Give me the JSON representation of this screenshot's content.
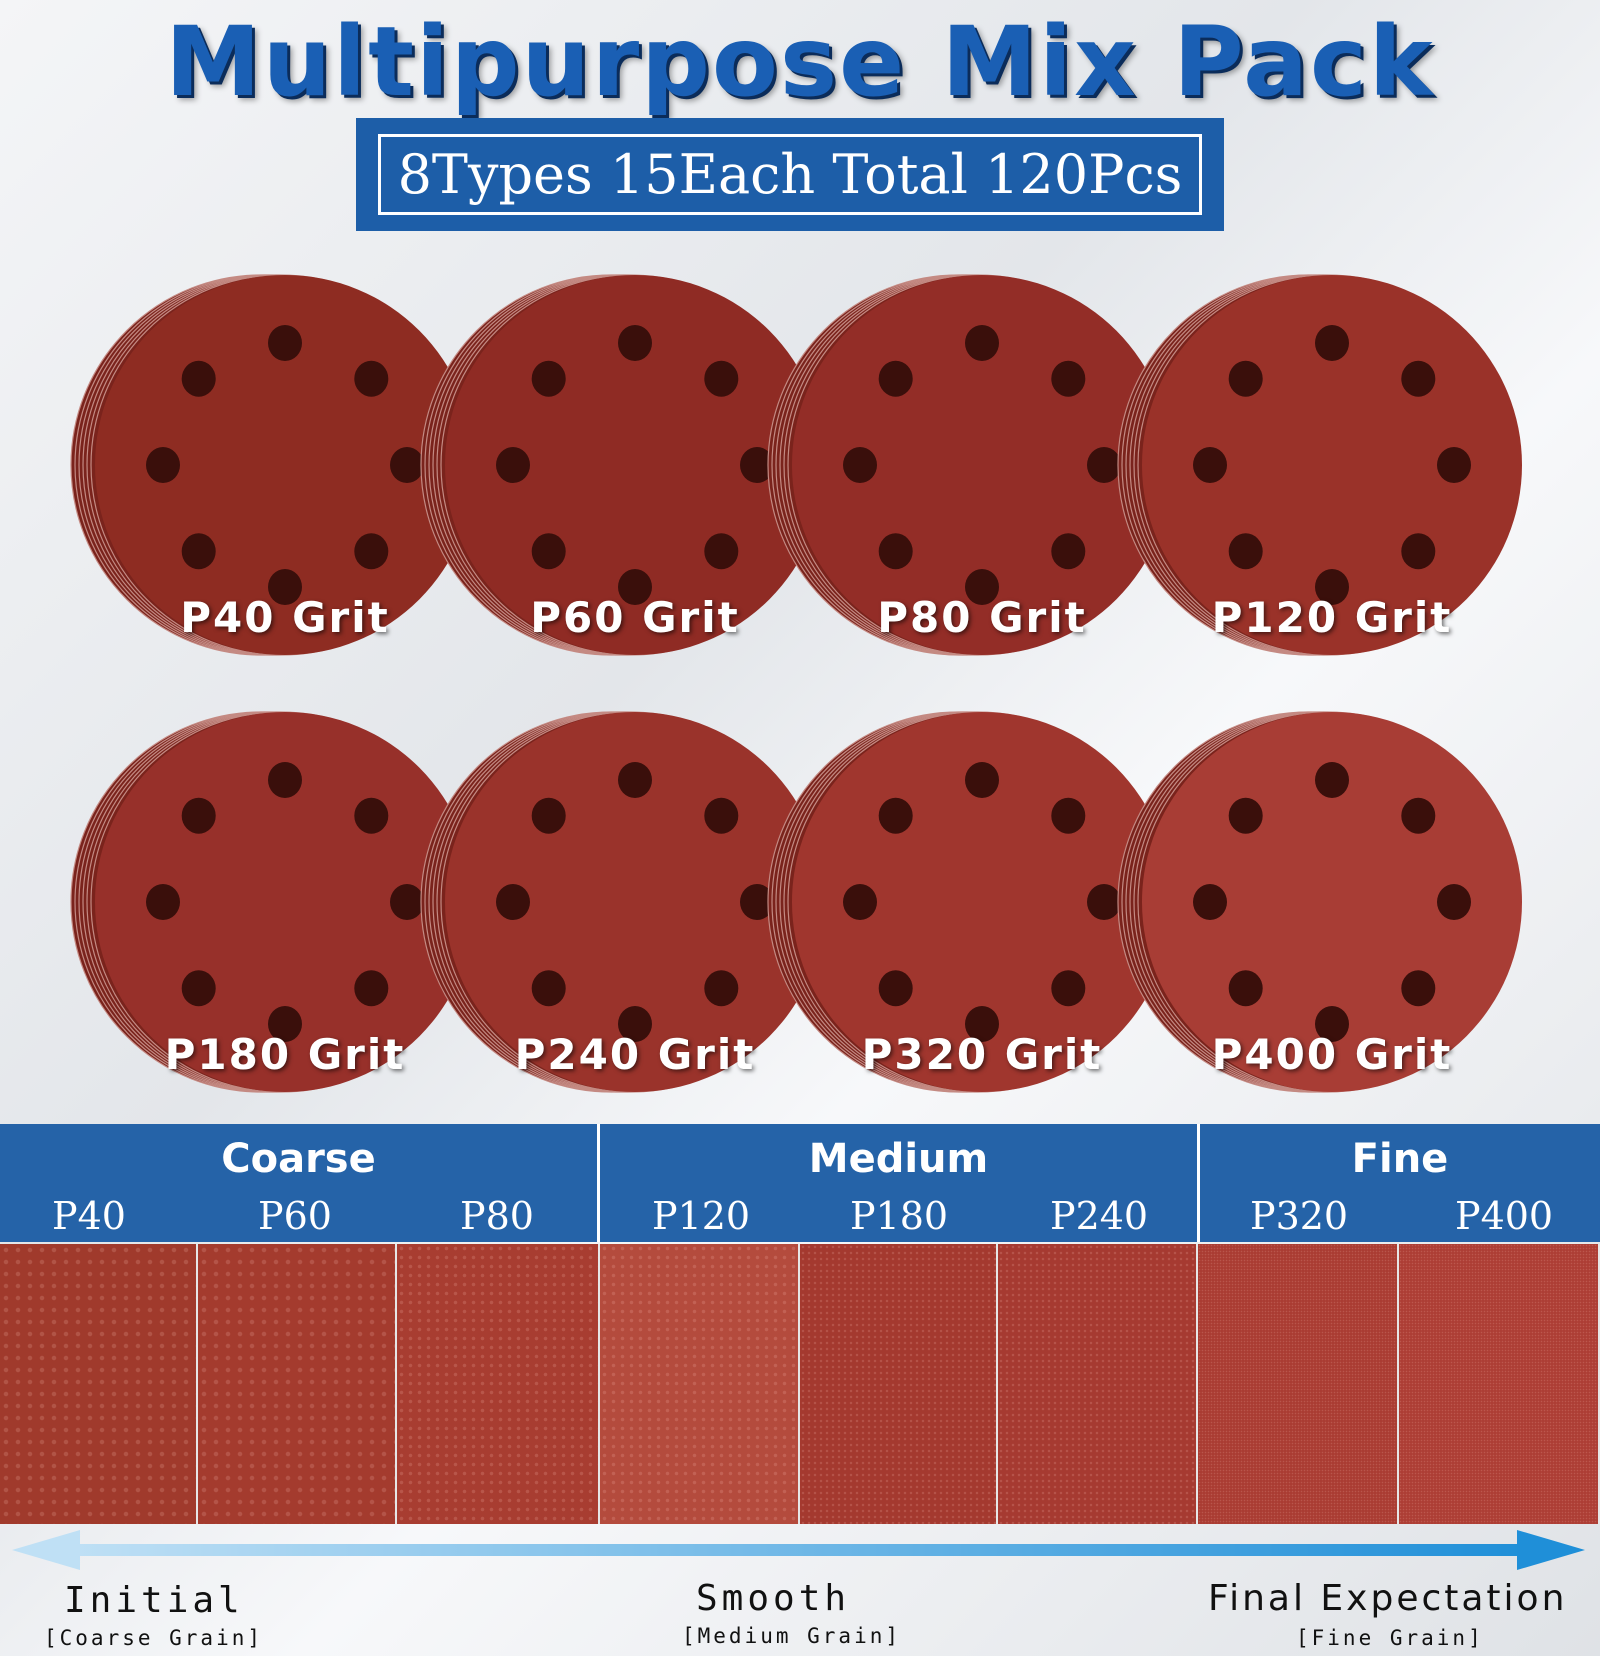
{
  "title": "Multipurpose Mix Pack",
  "subtitle": "8Types 15Each Total 120Pcs",
  "discs": [
    {
      "label": "P40 Grit",
      "color": "#8e2c22"
    },
    {
      "label": "P60 Grit",
      "color": "#8f2b24"
    },
    {
      "label": "P80 Grit",
      "color": "#932d27"
    },
    {
      "label": "P120 Grit",
      "color": "#9a3229"
    },
    {
      "label": "P180 Grit",
      "color": "#97302a"
    },
    {
      "label": "P240 Grit",
      "color": "#9a332b"
    },
    {
      "label": "P320 Grit",
      "color": "#a0362e"
    },
    {
      "label": "P400 Grit",
      "color": "#a83d35"
    }
  ],
  "grades": [
    {
      "name": "Coarse",
      "items": [
        "P40",
        "P60",
        "P80"
      ]
    },
    {
      "name": "Medium",
      "items": [
        "P120",
        "P180",
        "P240"
      ]
    },
    {
      "name": "Fine",
      "items": [
        "P320",
        "P400"
      ]
    }
  ],
  "swatch_colors": [
    "#a03a2c",
    "#a43b2e",
    "#a83d31",
    "#b44b3d",
    "#a4392f",
    "#a63a31",
    "#aa3c33",
    "#ad3e35"
  ],
  "scale": {
    "left": {
      "label": "Initial",
      "sub": "[Coarse Grain]"
    },
    "middle": {
      "label": "Smooth",
      "sub": "[Medium Grain]"
    },
    "right": {
      "label": "Final Expectation",
      "sub": "[Fine Grain]"
    }
  },
  "colors": {
    "brand_blue": "#2563a8",
    "arrow_blue": "#3aa0e0"
  }
}
